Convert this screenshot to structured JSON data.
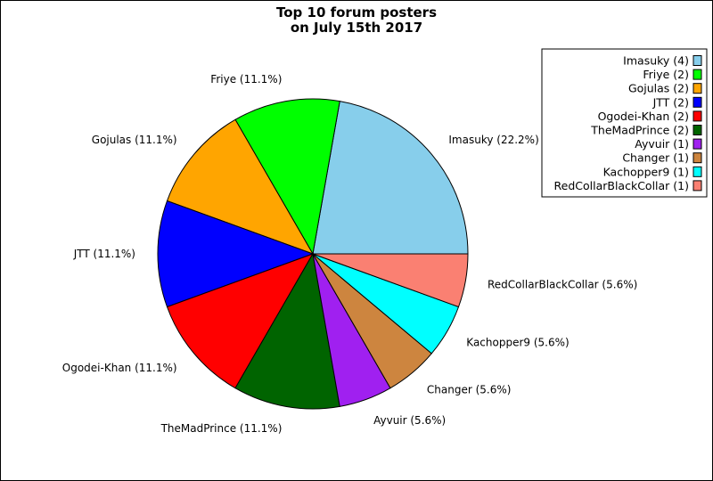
{
  "chart_data": {
    "type": "pie",
    "title": [
      "Top 10 forum posters",
      "on July 15th 2017"
    ],
    "legend_position": "top-right",
    "slices": [
      {
        "name": "Imasuky",
        "count": 4,
        "percent": 22.2,
        "label": "Imasuky (22.2%)",
        "legend": "Imasuky (4)",
        "color": "#87ceeb"
      },
      {
        "name": "Friye",
        "count": 2,
        "percent": 11.1,
        "label": "Friye (11.1%)",
        "legend": "Friye (2)",
        "color": "#00ff00"
      },
      {
        "name": "Gojulas",
        "count": 2,
        "percent": 11.1,
        "label": "Gojulas (11.1%)",
        "legend": "Gojulas (2)",
        "color": "#ffa500"
      },
      {
        "name": "JTT",
        "count": 2,
        "percent": 11.1,
        "label": "JTT (11.1%)",
        "legend": "JTT (2)",
        "color": "#0000ff"
      },
      {
        "name": "Ogodei-Khan",
        "count": 2,
        "percent": 11.1,
        "label": "Ogodei-Khan (11.1%)",
        "legend": "Ogodei-Khan (2)",
        "color": "#ff0000"
      },
      {
        "name": "TheMadPrince",
        "count": 2,
        "percent": 11.1,
        "label": "TheMadPrince (11.1%)",
        "legend": "TheMadPrince (2)",
        "color": "#006400"
      },
      {
        "name": "Ayvuir",
        "count": 1,
        "percent": 5.6,
        "label": "Ayvuir (5.6%)",
        "legend": "Ayvuir (1)",
        "color": "#a020f0"
      },
      {
        "name": "Changer",
        "count": 1,
        "percent": 5.6,
        "label": "Changer (5.6%)",
        "legend": "Changer (1)",
        "color": "#cd853f"
      },
      {
        "name": "Kachopper9",
        "count": 1,
        "percent": 5.6,
        "label": "Kachopper9 (5.6%)",
        "legend": "Kachopper9 (1)",
        "color": "#00ffff"
      },
      {
        "name": "RedCollarBlackCollar",
        "count": 1,
        "percent": 5.6,
        "label": "RedCollarBlackCollar (5.6%)",
        "legend": "RedCollarBlackCollar (1)",
        "color": "#fa8072"
      }
    ]
  }
}
